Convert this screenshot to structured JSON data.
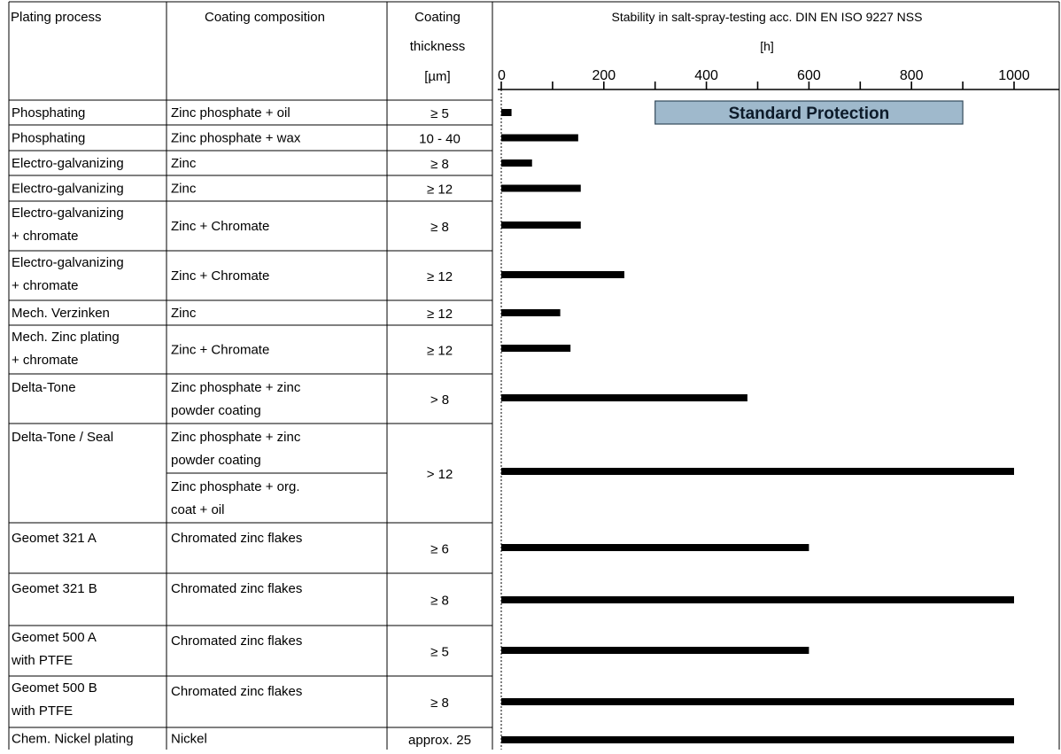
{
  "header": {
    "col_process": "Plating process",
    "col_composition": "Coating composition",
    "col_thickness_lines": [
      "Coating",
      "thickness",
      "[µm]"
    ],
    "chart_title": "Stability in salt-spray-testing acc.  DIN EN ISO 9227 NSS",
    "chart_unit": "[h]"
  },
  "standard_protection_label": "Standard Protection",
  "colors": {
    "bar": "#000000",
    "band_fill": "#9fb9cc",
    "band_border": "#33495a",
    "grid": "#000000"
  },
  "rows": [
    {
      "process": [
        "Phosphating"
      ],
      "composition": [
        "Zinc phosphate + oil"
      ],
      "thickness": "≥ 5"
    },
    {
      "process": [
        "Phosphating"
      ],
      "composition": [
        "Zinc phosphate + wax"
      ],
      "thickness": "10 - 40"
    },
    {
      "process": [
        "Electro-galvanizing"
      ],
      "composition": [
        "Zinc"
      ],
      "thickness": "≥ 8"
    },
    {
      "process": [
        "Electro-galvanizing"
      ],
      "composition": [
        "Zinc"
      ],
      "thickness": "≥ 12"
    },
    {
      "process": [
        "Electro-galvanizing",
        "+ chromate"
      ],
      "composition": [
        "Zinc + Chromate"
      ],
      "thickness": "≥ 8"
    },
    {
      "process": [
        "Electro-galvanizing",
        "+ chromate"
      ],
      "composition": [
        "Zinc + Chromate"
      ],
      "thickness": "≥ 12"
    },
    {
      "process": [
        " Mech. Verzinken"
      ],
      "composition": [
        "Zinc"
      ],
      "thickness": "≥ 12"
    },
    {
      "process": [
        "Mech. Zinc plating",
        "+ chromate"
      ],
      "composition": [
        "Zinc + Chromate"
      ],
      "thickness": "≥ 12"
    },
    {
      "process": [
        " Delta-Tone"
      ],
      "composition": [
        "Zinc phosphate + zinc",
        "powder coating"
      ],
      "thickness": "> 8"
    },
    {
      "process": [
        " Delta-Tone / Seal"
      ],
      "composition": [
        "Zinc phosphate + zinc",
        "powder coating"
      ],
      "composition2": [
        "Zinc phosphate + org.",
        "coat + oil"
      ],
      "thickness": "> 12"
    },
    {
      "process": [
        "Geomet 321 A"
      ],
      "composition": [
        "Chromated zinc flakes"
      ],
      "thickness": "≥ 6"
    },
    {
      "process": [
        "Geomet 321 B"
      ],
      "composition": [
        "Chromated zinc flakes"
      ],
      "thickness": "≥ 8"
    },
    {
      "process": [
        "Geomet 500 A",
        "with PTFE"
      ],
      "composition": [
        "Chromated zinc flakes"
      ],
      "thickness": "≥ 5"
    },
    {
      "process": [
        "Geomet 500 B",
        "with PTFE"
      ],
      "composition": [
        "Chromated zinc flakes"
      ],
      "thickness": "≥ 8"
    },
    {
      "process": [
        "Chem. Nickel plating"
      ],
      "composition": [
        "Nickel"
      ],
      "thickness": "approx.  25"
    }
  ],
  "chart_data": {
    "type": "bar",
    "orientation": "horizontal",
    "title": "Stability in salt-spray-testing acc.  DIN EN ISO 9227 NSS",
    "xlabel": "[h]",
    "xlim": [
      0,
      1000
    ],
    "x_ticks": [
      0,
      200,
      400,
      600,
      800,
      1000
    ],
    "categories": [
      "Phosphating / Zinc phosphate + oil",
      "Phosphating / Zinc phosphate + wax",
      "Electro-galvanizing / Zinc ≥ 8",
      "Electro-galvanizing / Zinc ≥ 12",
      "Electro-galvanizing + chromate ≥ 8",
      "Electro-galvanizing + chromate ≥ 12",
      "Mech. Verzinken",
      "Mech. Zinc plating + chromate",
      "Delta-Tone",
      "Delta-Tone / Seal",
      "Geomet 321 A",
      "Geomet 321 B",
      "Geomet 500 A with PTFE",
      "Geomet 500 B with PTFE",
      "Chem. Nickel plating"
    ],
    "values": [
      20,
      150,
      60,
      155,
      155,
      240,
      115,
      135,
      480,
      1000,
      600,
      1000,
      600,
      1000,
      1000
    ],
    "standard_protection_range": [
      300,
      900
    ],
    "grid": false,
    "legend": "none"
  }
}
